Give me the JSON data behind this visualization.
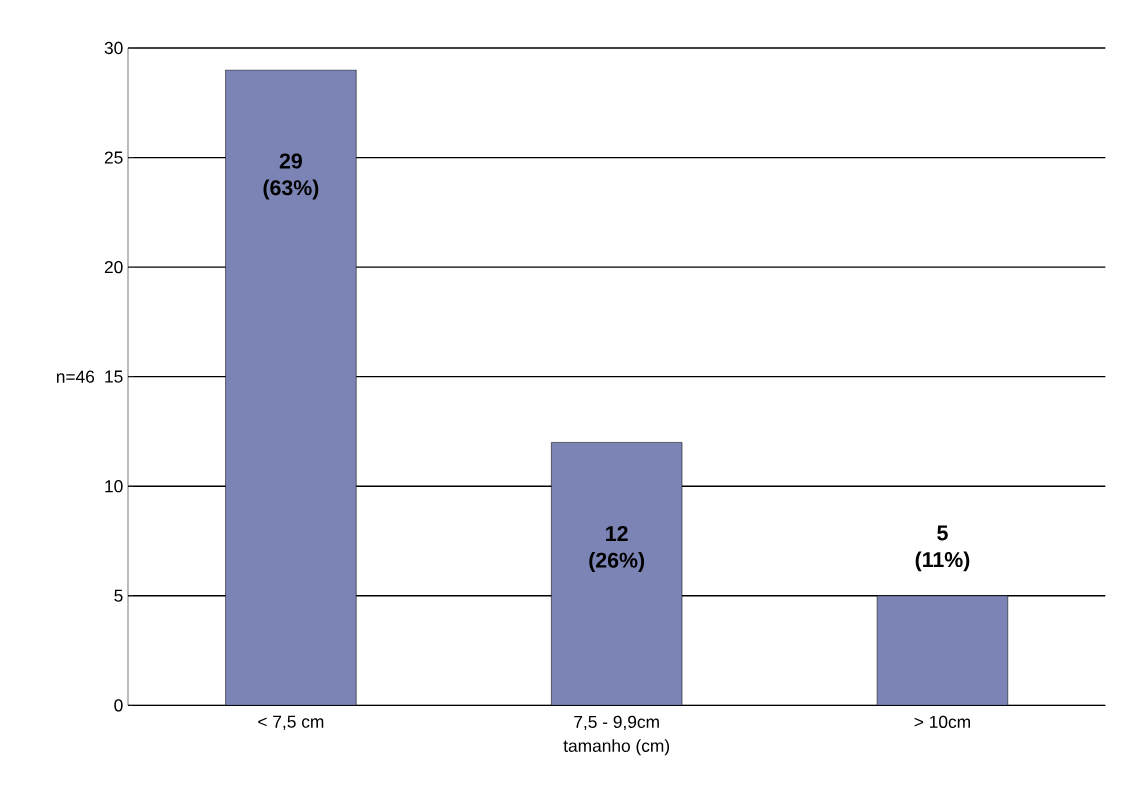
{
  "chart_data": {
    "type": "bar",
    "ylabel": "n=46",
    "xlabel": "tamanho (cm)",
    "categories": [
      "< 7,5 cm",
      "7,5 - 9,9cm",
      "> 10cm"
    ],
    "values": [
      29,
      12,
      5
    ],
    "value_labels": [
      "29 (63%)",
      "12 (26%)",
      "5 (11%)"
    ],
    "color": "#7b84b4",
    "ylim": [
      0,
      30
    ],
    "yticks": [
      0,
      5,
      10,
      15,
      20,
      25,
      30
    ],
    "grid": "y"
  }
}
